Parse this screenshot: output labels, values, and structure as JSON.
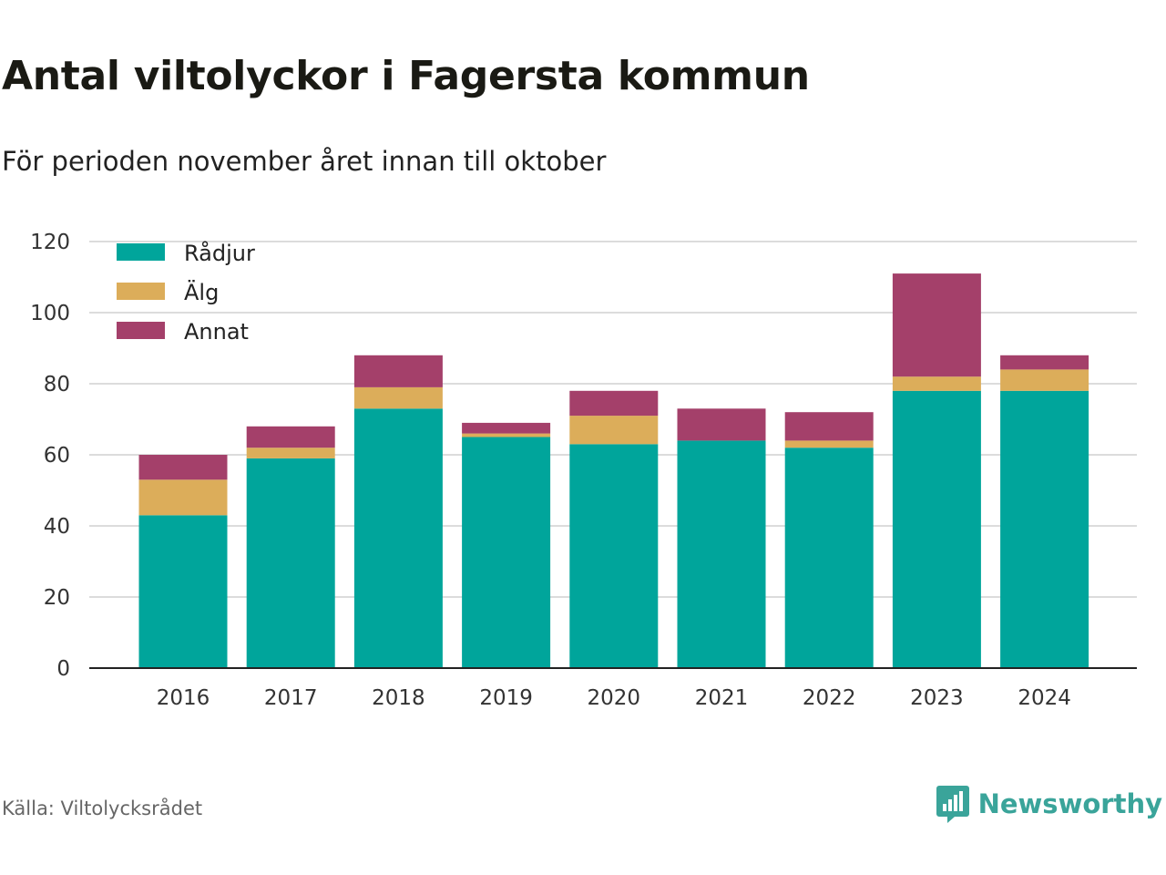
{
  "title": "Antal viltolyckor i Fagersta kommun",
  "subtitle": "För perioden november året innan till oktober",
  "source": "Källa: Viltolycksrådet",
  "brand": {
    "name": "Newsworthy",
    "icon": "newsworthy-logo-icon",
    "color": "#3aa49a"
  },
  "chart_data": {
    "type": "bar",
    "stacked": true,
    "categories": [
      "2016",
      "2017",
      "2018",
      "2019",
      "2020",
      "2021",
      "2022",
      "2023",
      "2024"
    ],
    "series": [
      {
        "name": "Rådjur",
        "color": "#00a59b",
        "values": [
          43,
          59,
          73,
          65,
          63,
          64,
          62,
          78,
          78
        ]
      },
      {
        "name": "Älg",
        "color": "#dcad5a",
        "values": [
          10,
          3,
          6,
          1,
          8,
          0,
          2,
          4,
          6
        ]
      },
      {
        "name": "Annat",
        "color": "#a4406a",
        "values": [
          7,
          6,
          9,
          3,
          7,
          9,
          8,
          29,
          4
        ]
      }
    ],
    "ylim": [
      0,
      120
    ],
    "yticks": [
      "0",
      "20",
      "40",
      "60",
      "80",
      "100",
      "120"
    ],
    "grid": true,
    "legend": "top-left"
  }
}
